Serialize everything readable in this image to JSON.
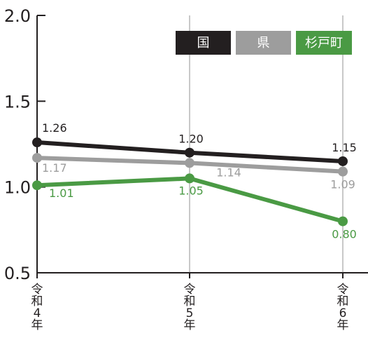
{
  "chart_data": {
    "type": "line",
    "categories": [
      "令和4年",
      "令和5年",
      "令和6年"
    ],
    "category_labels": [
      [
        "令",
        "和",
        "4",
        "年"
      ],
      [
        "令",
        "和",
        "5",
        "年"
      ],
      [
        "令",
        "和",
        "6",
        "年"
      ]
    ],
    "ylim": [
      0.5,
      2.0
    ],
    "y_ticks": [
      "0.5",
      "1.0",
      "1.5",
      "2.0"
    ],
    "y_tick_values": [
      0.5,
      1.0,
      1.5,
      2.0
    ],
    "grid": "vertical lines at categories",
    "legend": "top-right",
    "series": [
      {
        "name": "国",
        "values": [
          1.26,
          1.2,
          1.15
        ],
        "labels": [
          "1.26",
          "1.20",
          "1.15"
        ],
        "color": "#231f20"
      },
      {
        "name": "県",
        "values": [
          1.17,
          1.14,
          1.09
        ],
        "labels": [
          "1.17",
          "1.14",
          "1.09"
        ],
        "color": "#9d9d9d"
      },
      {
        "name": "杉戸町",
        "values": [
          1.01,
          1.05,
          0.8
        ],
        "labels": [
          "1.01",
          "1.05",
          "0.80"
        ],
        "color": "#4a9a44"
      }
    ]
  }
}
